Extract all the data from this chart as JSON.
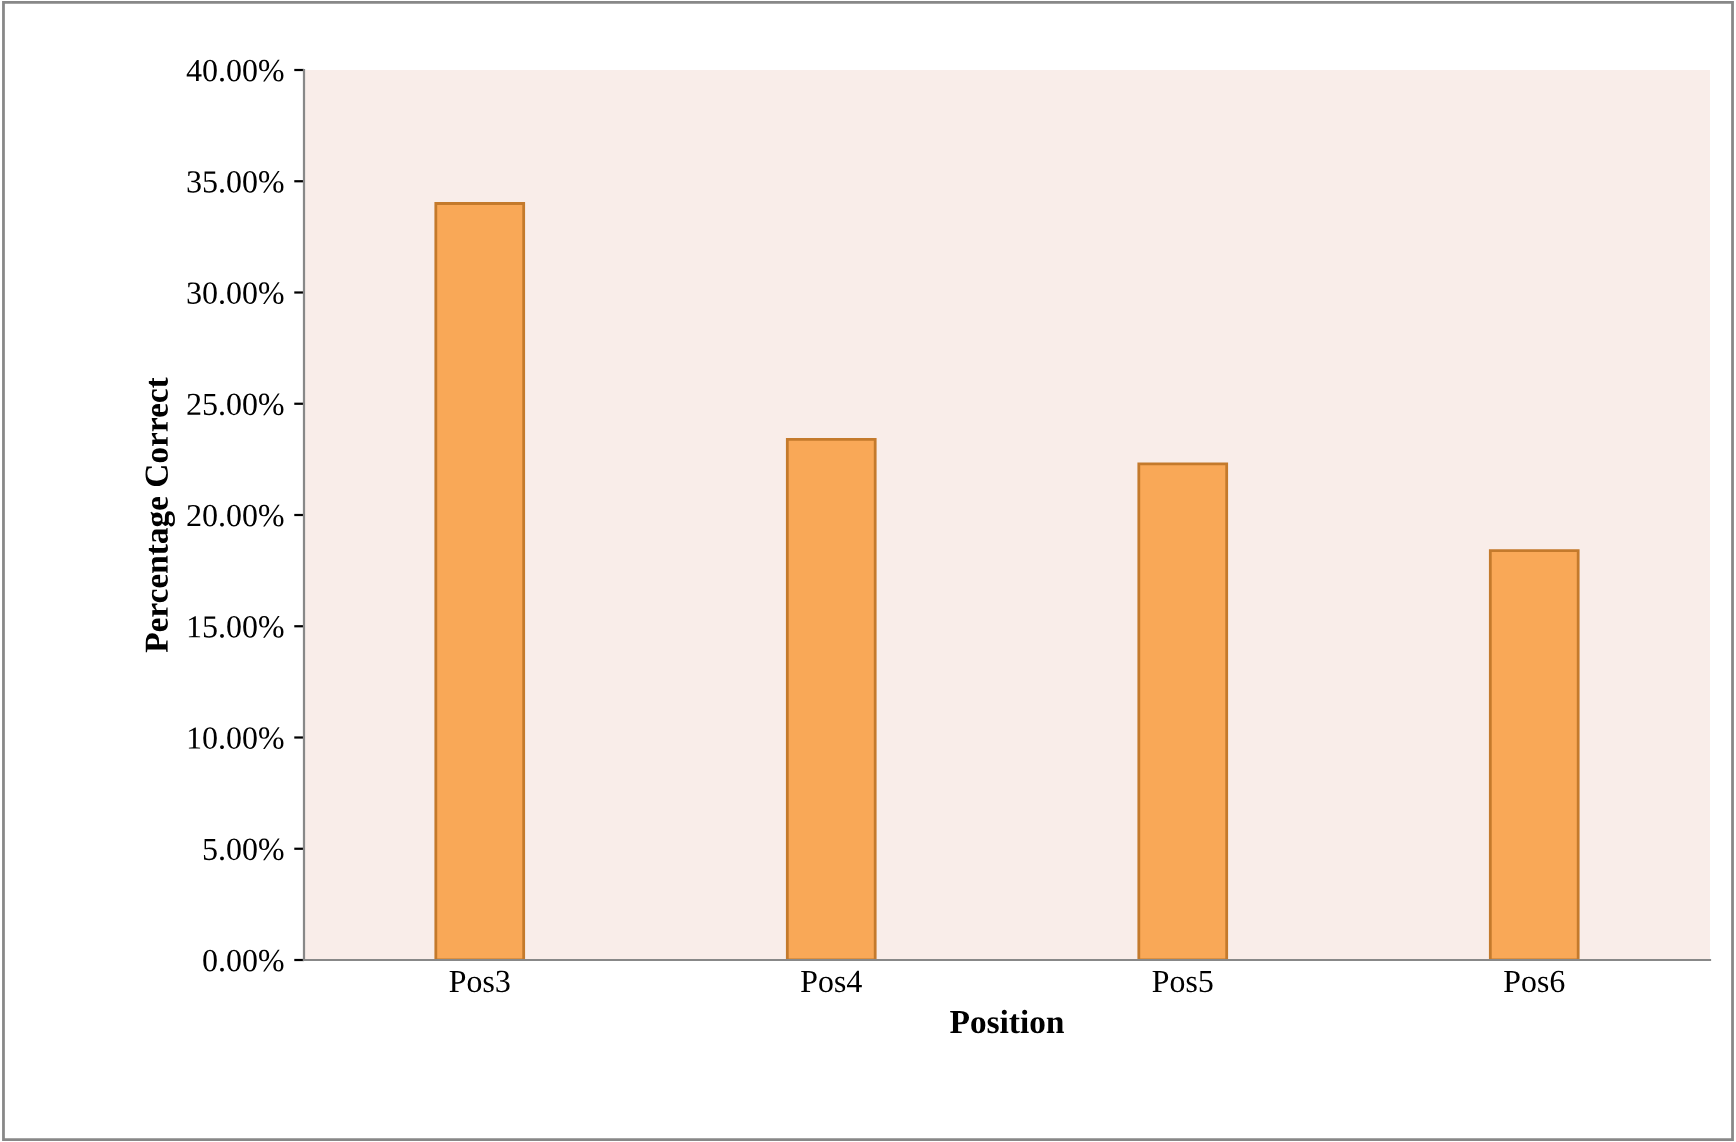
{
  "chart_data": {
    "type": "bar",
    "xlabel": "Position",
    "ylabel": "Percentage Correct",
    "categories": [
      "Pos3",
      "Pos4",
      "Pos5",
      "Pos6"
    ],
    "values": [
      34.0,
      23.4,
      22.3,
      18.4
    ],
    "color": "#f9a857",
    "ylim": [
      0,
      40
    ],
    "yticks": [
      {
        "value": 0,
        "label": "0.00%"
      },
      {
        "value": 5,
        "label": "5.00%"
      },
      {
        "value": 10,
        "label": "10.00%"
      },
      {
        "value": 15,
        "label": "15.00%"
      },
      {
        "value": 20,
        "label": "20.00%"
      },
      {
        "value": 25,
        "label": "25.00%"
      },
      {
        "value": 30,
        "label": "30.00%"
      },
      {
        "value": 35,
        "label": "35.00%"
      },
      {
        "value": 40,
        "label": "40.00%"
      }
    ],
    "grid": false,
    "legend": false
  }
}
